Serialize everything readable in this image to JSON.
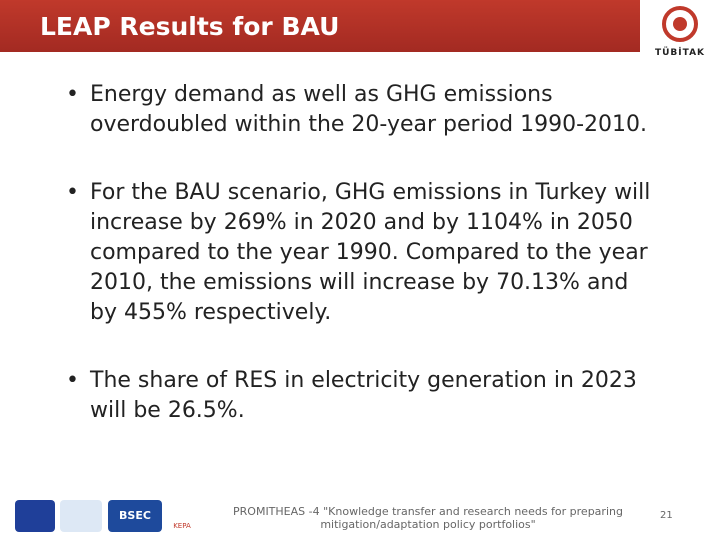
{
  "header": {
    "title": "LEAP Results for BAU",
    "logo_text": "TÜBİTAK"
  },
  "bullets": [
    "Energy demand as well as GHG emissions overdoubled within the 20-year period 1990-2010.",
    "For the BAU scenario, GHG emissions in Turkey will increase by 269% in 2020 and by 1104% in 2050 compared to the year 1990.  Compared to the year 2010, the emissions will increase by 70.13% and by 455% respectively.",
    "The share of RES in electricity generation in 2023 will be 26.5%."
  ],
  "footer": {
    "logos": [
      "BSEC",
      "KEPA"
    ],
    "text": "PROMITHEAS -4 \"Knowledge transfer and research needs for preparing mitigation/adaptation policy portfolios\"",
    "page": "21"
  }
}
